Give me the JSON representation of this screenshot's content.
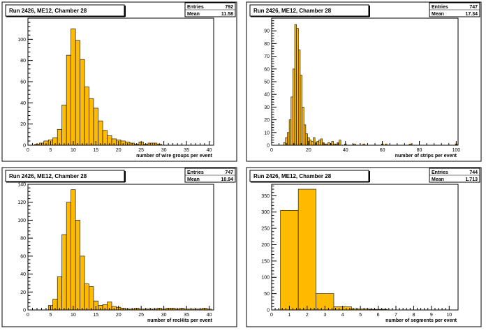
{
  "chart_data": [
    {
      "type": "bar",
      "title": "Run 2426, ME12, Chamber 28",
      "xlabel": "number of wire groups per event",
      "ylabel": "",
      "stats": {
        "entries_label": "Entries",
        "entries": "792",
        "mean_label": "Mean",
        "mean": "11.58"
      },
      "xlim": [
        0,
        41
      ],
      "ylim": [
        0,
        120
      ],
      "xticks": [
        0,
        5,
        10,
        15,
        20,
        25,
        30,
        35,
        40
      ],
      "yticks": [
        0,
        20,
        40,
        60,
        80,
        100
      ],
      "bin_width": 1,
      "x": [
        1,
        2,
        3,
        4,
        5,
        6,
        7,
        8,
        9,
        10,
        11,
        12,
        13,
        14,
        15,
        16,
        17,
        18,
        19,
        20,
        21,
        22,
        23,
        24,
        25,
        26,
        27,
        28,
        29,
        30,
        31,
        32,
        33,
        34,
        35,
        36,
        37,
        38,
        39,
        40
      ],
      "values": [
        0,
        1,
        2,
        4,
        5,
        7,
        15,
        38,
        85,
        110,
        99,
        81,
        55,
        44,
        35,
        23,
        14,
        9,
        6,
        5,
        4,
        3,
        2,
        1,
        3,
        1,
        2,
        2,
        1,
        0,
        0,
        0,
        0,
        0,
        0,
        0,
        0,
        0,
        0,
        0
      ]
    },
    {
      "type": "bar",
      "title": "Run 2426, ME12, Chamber 28",
      "xlabel": "number of strips per event",
      "ylabel": "",
      "stats": {
        "entries_label": "Entries",
        "entries": "747",
        "mean_label": "Mean",
        "mean": "17.34"
      },
      "xlim": [
        0,
        101
      ],
      "ylim": [
        0,
        100
      ],
      "xticks": [
        0,
        20,
        40,
        60,
        80,
        100
      ],
      "yticks": [
        0,
        10,
        20,
        30,
        40,
        50,
        60,
        70,
        80,
        90
      ],
      "bin_width": 1,
      "x": [
        7,
        8,
        9,
        10,
        11,
        12,
        13,
        14,
        15,
        16,
        17,
        18,
        19,
        20,
        21,
        22,
        23,
        24,
        25,
        26,
        27,
        28,
        29,
        30,
        31,
        32,
        33,
        34,
        35,
        36,
        37,
        40,
        45,
        50,
        60,
        62,
        75,
        100
      ],
      "values": [
        2,
        6,
        10,
        20,
        38,
        60,
        95,
        92,
        75,
        55,
        30,
        16,
        9,
        6,
        4,
        3,
        6,
        2,
        3,
        4,
        5,
        2,
        1,
        1,
        2,
        1,
        3,
        1,
        1,
        2,
        4,
        1,
        1,
        1,
        1,
        1,
        1,
        1
      ]
    },
    {
      "type": "bar",
      "title": "Run 2426, ME12, Chamber 28",
      "xlabel": "number of recHits per event",
      "ylabel": "",
      "stats": {
        "entries_label": "Entries",
        "entries": "747",
        "mean_label": "Mean",
        "mean": "10.94"
      },
      "xlim": [
        0,
        41
      ],
      "ylim": [
        0,
        140
      ],
      "xticks": [
        0,
        5,
        10,
        15,
        20,
        25,
        30,
        35,
        40
      ],
      "yticks": [
        0,
        20,
        40,
        60,
        80,
        100,
        120,
        140
      ],
      "bin_width": 1,
      "x": [
        5,
        6,
        7,
        8,
        9,
        10,
        11,
        12,
        13,
        14,
        15,
        16,
        17,
        18,
        19,
        20,
        21,
        22,
        23,
        24,
        25,
        26,
        27,
        28,
        29,
        30,
        31,
        32,
        33,
        34,
        35,
        36,
        37,
        38,
        39,
        40
      ],
      "values": [
        5,
        12,
        37,
        84,
        120,
        134,
        100,
        60,
        29,
        26,
        10,
        5,
        6,
        9,
        4,
        3,
        2,
        1,
        1,
        2,
        1,
        1,
        1,
        1,
        2,
        1,
        2,
        2,
        1,
        2,
        1,
        1,
        1,
        1,
        2,
        1
      ]
    },
    {
      "type": "bar",
      "title": "Run 2426, ME12, Chamber 28",
      "xlabel": "number of segments per event",
      "ylabel": "",
      "stats": {
        "entries_label": "Entries",
        "entries": "744",
        "mean_label": "Mean",
        "mean": "1.713"
      },
      "xlim": [
        0,
        10.5
      ],
      "ylim": [
        0,
        385
      ],
      "xticks": [
        0,
        1,
        2,
        3,
        4,
        5,
        6,
        7,
        8,
        9,
        10
      ],
      "yticks": [
        0,
        50,
        100,
        150,
        200,
        250,
        300,
        350
      ],
      "bin_width": 1,
      "x": [
        1,
        2,
        3,
        4,
        5,
        6
      ],
      "values": [
        305,
        370,
        50,
        10,
        3,
        2
      ]
    }
  ]
}
